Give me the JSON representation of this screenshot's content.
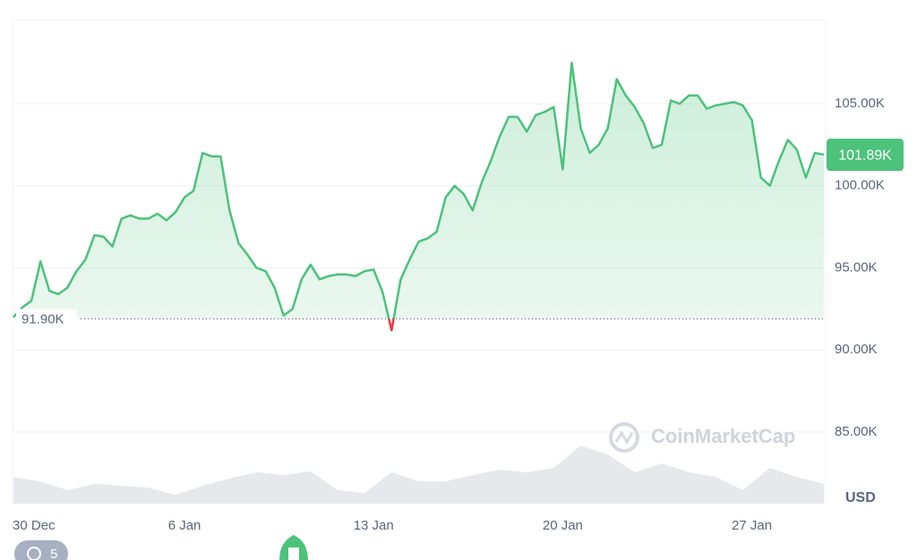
{
  "chart_data": {
    "type": "line",
    "categories": [
      "30 Dec",
      null,
      null,
      null,
      null,
      null,
      null,
      null,
      null,
      null,
      null,
      null,
      null,
      null,
      null,
      null,
      null,
      null,
      null,
      "6 Jan",
      null,
      null,
      null,
      null,
      null,
      null,
      null,
      null,
      null,
      null,
      null,
      null,
      null,
      null,
      null,
      null,
      null,
      null,
      null,
      null,
      "13 Jan",
      null,
      null,
      null,
      null,
      null,
      null,
      null,
      null,
      null,
      null,
      null,
      null,
      null,
      null,
      null,
      null,
      null,
      null,
      null,
      null,
      "20 Jan",
      null,
      null,
      null,
      null,
      null,
      null,
      null,
      null,
      null,
      null,
      null,
      null,
      null,
      null,
      null,
      null,
      null,
      null,
      null,
      null,
      "27 Jan",
      null,
      null,
      null,
      null,
      null,
      null,
      null,
      null
    ],
    "series": [
      {
        "color": "#4cc27a",
        "values": [
          92.0,
          92.6,
          93.0,
          95.4,
          93.6,
          93.4,
          93.8,
          94.8,
          95.5,
          97.0,
          96.9,
          96.3,
          98.0,
          98.2,
          98.0,
          98.0,
          98.3,
          97.9,
          98.4,
          99.3,
          99.7,
          102.0,
          101.8,
          101.8,
          98.5,
          96.5,
          95.8,
          95.0,
          94.8,
          93.8,
          92.1,
          92.5,
          94.3,
          95.2,
          94.3,
          94.5,
          94.6,
          94.6,
          94.5,
          94.8,
          94.9,
          93.5,
          91.2,
          94.3,
          95.5,
          96.6,
          96.8,
          97.2,
          99.3,
          100.0,
          99.5,
          98.5,
          100.2,
          101.5,
          103.0,
          104.2,
          104.2,
          103.3,
          104.3,
          104.5,
          104.8,
          101.0,
          107.5,
          103.5,
          102.0,
          102.5,
          103.5,
          106.5,
          105.5,
          104.8,
          103.8,
          102.3,
          102.5,
          105.2,
          105.0,
          105.5,
          105.5,
          104.7,
          104.9,
          105.0,
          105.1,
          104.9,
          104.0,
          100.5,
          100.0,
          101.5,
          102.8,
          102.2,
          100.5,
          102.0,
          101.9
        ]
      }
    ],
    "below_color": "#ea3943",
    "volume": {
      "values": [
        5.5,
        4.6,
        2.8,
        4.1,
        3.7,
        3.3,
        1.8,
        3.7,
        5.2,
        6.5,
        5.9,
        6.7,
        2.8,
        2.2,
        6.5,
        4.6,
        4.6,
        5.9,
        7.0,
        6.5,
        7.4,
        12.0,
        10.2,
        6.5,
        8.3,
        6.5,
        5.5,
        2.8,
        7.4,
        5.5,
        4.1
      ],
      "color": "#e6e8ec",
      "axis": "y2"
    },
    "ylim": [
      80.64,
      110.12
    ],
    "y2lim": [
      0,
      100
    ],
    "yticks": [
      {
        "value": 85,
        "label": "85.00K"
      },
      {
        "value": 90,
        "label": "90.00K"
      },
      {
        "value": 95,
        "label": "95.00K"
      },
      {
        "value": 100,
        "label": "100.00K"
      },
      {
        "value": 105,
        "label": "105.00K"
      }
    ],
    "grid": true,
    "reference": {
      "value": 91.9,
      "label": "91.90K"
    },
    "last_price": {
      "value": 101.89,
      "label": "101.89K"
    },
    "currency": "USD",
    "watermark": "CoinMarketCap",
    "history_count": "5"
  }
}
